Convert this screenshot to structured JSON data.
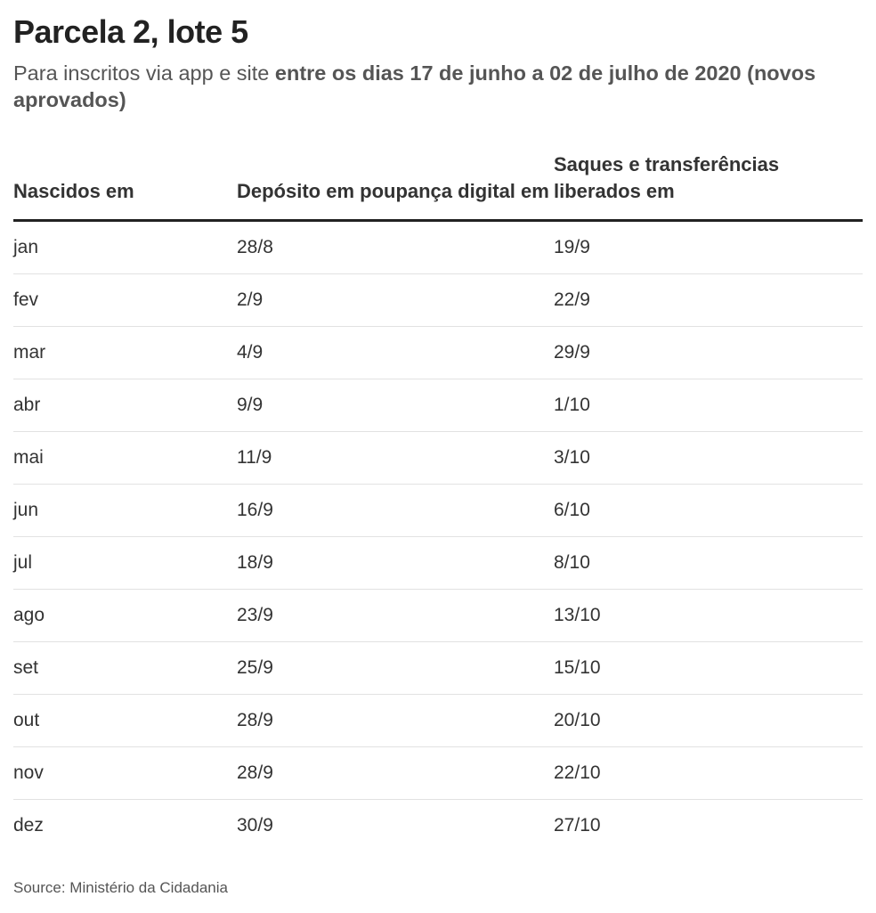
{
  "title": "Parcela 2, lote 5",
  "subtitle": {
    "regular": "Para inscritos via app e site ",
    "bold": "entre os dias 17 de junho a 02 de julho de 2020 (novos aprovados)"
  },
  "source": "Source: Ministério da Cidadania",
  "chart_data": {
    "type": "table",
    "title": "Parcela 2, lote 5",
    "columns": [
      "Nascidos em",
      "Depósito em poupança digital em",
      "Saques e transferências liberados em"
    ],
    "rows": [
      [
        "jan",
        "28/8",
        "19/9"
      ],
      [
        "fev",
        "2/9",
        "22/9"
      ],
      [
        "mar",
        "4/9",
        "29/9"
      ],
      [
        "abr",
        "9/9",
        "1/10"
      ],
      [
        "mai",
        "11/9",
        "3/10"
      ],
      [
        "jun",
        "16/9",
        "6/10"
      ],
      [
        "jul",
        "18/9",
        "8/10"
      ],
      [
        "ago",
        "23/9",
        "13/10"
      ],
      [
        "set",
        "25/9",
        "15/10"
      ],
      [
        "out",
        "28/9",
        "20/10"
      ],
      [
        "nov",
        "28/9",
        "22/10"
      ],
      [
        "dez",
        "30/9",
        "27/10"
      ]
    ]
  }
}
